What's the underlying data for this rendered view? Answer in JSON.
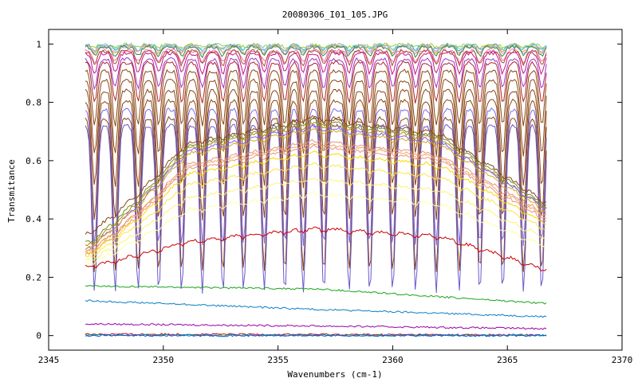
{
  "chart_data": {
    "type": "line",
    "title": "20080306_I01_105.JPG",
    "xlabel": "Wavenumbers (cm-1)",
    "ylabel": "Transmitance",
    "xlim": [
      2345,
      2370
    ],
    "ylim": [
      -0.05,
      1.05
    ],
    "xticks": [
      "2345",
      "2350",
      "2355",
      "2360",
      "2365",
      "2370"
    ],
    "xtick_values": [
      2345,
      2350,
      2355,
      2360,
      2365,
      2370
    ],
    "yticks": [
      "0",
      "0.2",
      "0.4",
      "0.6",
      "0.8",
      "1"
    ],
    "ytick_values": [
      0,
      0.2,
      0.4,
      0.6,
      0.8,
      1
    ],
    "x_range_data": [
      2346.6,
      2366.7
    ],
    "grid": false,
    "legend": "none",
    "series": [
      {
        "color": "#9ACD32",
        "envelope": "plateau",
        "level": 1.0,
        "dip": 0.01
      },
      {
        "color": "#20B2AA",
        "envelope": "plateau",
        "level": 1.0,
        "dip": 0.02
      },
      {
        "color": "#FFA500",
        "envelope": "plateau",
        "level": 1.0,
        "dip": 0.03
      },
      {
        "color": "#87CEEB",
        "envelope": "plateau",
        "level": 1.0,
        "dip": 0.02
      },
      {
        "color": "#DDA0DD",
        "envelope": "plateau",
        "level": 1.0,
        "dip": 0.03
      },
      {
        "color": "#2E8B57",
        "envelope": "plateau",
        "level": 1.0,
        "dip": 0.04
      },
      {
        "color": "#FF69B4",
        "envelope": "plateau",
        "level": 0.99,
        "dip": 0.05
      },
      {
        "color": "#A0522D",
        "envelope": "plateau",
        "level": 0.99,
        "dip": 0.06
      },
      {
        "color": "#C71585",
        "envelope": "plateau",
        "level": 0.99,
        "dip": 0.09
      },
      {
        "color": "#9932CC",
        "envelope": "plateau",
        "level": 0.98,
        "dip": 0.13
      },
      {
        "color": "#B22222",
        "envelope": "plateau",
        "level": 0.98,
        "dip": 0.18
      },
      {
        "color": "#8B4513",
        "envelope": "plateau",
        "level": 0.97,
        "dip": 0.25
      },
      {
        "color": "#8B4513",
        "envelope": "plateau",
        "level": 0.96,
        "dip": 0.34
      },
      {
        "color": "#8B4513",
        "envelope": "plateau",
        "level": 0.95,
        "dip": 0.44
      },
      {
        "color": "#8B4513",
        "envelope": "plateau",
        "level": 0.94,
        "dip": 0.54
      },
      {
        "color": "#7B68EE",
        "envelope": "plateau",
        "level": 0.93,
        "dip": 0.62
      },
      {
        "color": "#8B4513",
        "envelope": "plateau",
        "level": 0.92,
        "dip": 0.7
      },
      {
        "color": "#6A5ACD",
        "envelope": "plateau",
        "level": 0.91,
        "dip": 0.76
      },
      {
        "color": "#8B4513",
        "envelope": "hump",
        "left": 0.35,
        "peak": 0.75,
        "right": 0.46
      },
      {
        "color": "#6B8E23",
        "envelope": "hump",
        "left": 0.32,
        "peak": 0.74,
        "right": 0.45
      },
      {
        "color": "#B8860B",
        "envelope": "hump",
        "left": 0.31,
        "peak": 0.73,
        "right": 0.44
      },
      {
        "color": "#7B68EE",
        "envelope": "hump",
        "left": 0.3,
        "peak": 0.72,
        "right": 0.44
      },
      {
        "color": "#DAA520",
        "envelope": "hump",
        "left": 0.3,
        "peak": 0.71,
        "right": 0.43
      },
      {
        "color": "#E9967A",
        "envelope": "hump",
        "left": 0.29,
        "peak": 0.67,
        "right": 0.42
      },
      {
        "color": "#F4A460",
        "envelope": "hump",
        "left": 0.29,
        "peak": 0.66,
        "right": 0.41
      },
      {
        "color": "#E9967A",
        "envelope": "hump",
        "left": 0.28,
        "peak": 0.65,
        "right": 0.4
      },
      {
        "color": "#FFD700",
        "envelope": "hump",
        "left": 0.28,
        "peak": 0.63,
        "right": 0.39
      },
      {
        "color": "#FFE44D",
        "envelope": "hump",
        "left": 0.27,
        "peak": 0.59,
        "right": 0.37
      },
      {
        "color": "#FFF176",
        "envelope": "hump",
        "left": 0.26,
        "peak": 0.54,
        "right": 0.34
      },
      {
        "color": "#FFFFA0",
        "envelope": "hump",
        "left": 0.25,
        "peak": 0.49,
        "right": 0.31
      },
      {
        "color": "#CC0000",
        "envelope": "hump",
        "left": 0.24,
        "peak": 0.37,
        "right": 0.23
      },
      {
        "color": "#1AA31A",
        "envelope": "flat",
        "left": 0.17,
        "mid": 0.16,
        "right": 0.11
      },
      {
        "color": "#0A7FC4",
        "envelope": "flat",
        "left": 0.12,
        "mid": 0.09,
        "right": 0.065
      },
      {
        "color": "#9900AA",
        "envelope": "flat",
        "left": 0.04,
        "mid": 0.033,
        "right": 0.024
      },
      {
        "color": "#E00000",
        "envelope": "flat",
        "left": 0.005,
        "mid": 0.004,
        "right": 0.002
      },
      {
        "color": "#00AA66",
        "envelope": "flat",
        "left": 0.002,
        "mid": 0.001,
        "right": 0.001
      },
      {
        "color": "#0055FF",
        "envelope": "flat",
        "left": 0.0,
        "mid": 0.0,
        "right": 0.0
      }
    ]
  }
}
